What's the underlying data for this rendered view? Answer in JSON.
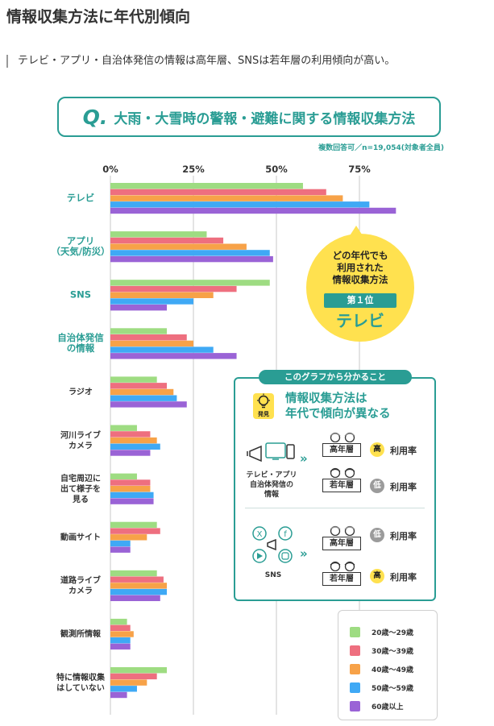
{
  "page": {
    "title": "情報収集方法に年代別傾向",
    "subtitle": "テレビ・アプリ・自治体発信の情報は高年層、SNSは若年層の利用傾向が高い。"
  },
  "question": {
    "mark": "Q.",
    "text": "大雨・大雪時の警報・避難に関する情報収集方法"
  },
  "note": "複数回答可／n=19,054(対象者全員)",
  "callout": {
    "line1": "どの年代でも",
    "line2": "利用された",
    "line3": "情報収集方法",
    "badge": "第１位",
    "answer": "テレビ"
  },
  "finding": {
    "tag": "このグラフから分かること",
    "icon_label": "発見",
    "icon": "lightbulb-icon",
    "heading_line1": "情報収集方法は",
    "heading_line2": "年代で傾向が異なる",
    "group1": {
      "name_line1": "テレビ・アプリ",
      "name_line2": "自治体発信の",
      "name_line3": "情報",
      "icon": "tv-megaphone-icon",
      "arrows": "»",
      "rows": [
        {
          "gen": "高年層",
          "rate_mark": "高",
          "rate": "利用率"
        },
        {
          "gen": "若年層",
          "rate_mark": "低",
          "rate": "利用率"
        }
      ]
    },
    "group2": {
      "name": "SNS",
      "icon": "sns-icons",
      "arrows": "»",
      "rows": [
        {
          "gen": "高年層",
          "rate_mark": "低",
          "rate": "利用率"
        },
        {
          "gen": "若年層",
          "rate_mark": "高",
          "rate": "利用率"
        }
      ]
    }
  },
  "colors": {
    "accent": "#2a9d94",
    "highlight": "#ffe14f",
    "grid": "#c8c8c8"
  },
  "chart_data": {
    "type": "bar",
    "orientation": "horizontal",
    "xlim": [
      0,
      87
    ],
    "x_ticks": [
      "0%",
      "25%",
      "50%",
      "75%"
    ],
    "tick_values": [
      0,
      25,
      50,
      75
    ],
    "grid": true,
    "legend_position": "bottom-right",
    "categories": [
      [
        "テレビ"
      ],
      [
        "アプリ",
        "（天気/防災）"
      ],
      [
        "SNS"
      ],
      [
        "自治体発信",
        "の情報"
      ],
      [
        "ラジオ"
      ],
      [
        "河川ライブ",
        "カメラ"
      ],
      [
        "自宅周辺に",
        "出て様子を",
        "見る"
      ],
      [
        "動画サイト"
      ],
      [
        "道路ライブ",
        "カメラ"
      ],
      [
        "観測所情報"
      ],
      [
        "特に情報収集",
        "はしていない"
      ]
    ],
    "highlight_categories": [
      0,
      1,
      2,
      3
    ],
    "series": [
      {
        "name": "20歳〜29歳",
        "color": "#9edc82",
        "values": [
          58,
          29,
          48,
          17,
          14,
          8,
          8,
          14,
          14,
          5,
          17
        ]
      },
      {
        "name": "30歳〜39歳",
        "color": "#ee6f7f",
        "values": [
          65,
          34,
          38,
          23,
          17,
          12,
          12,
          15,
          16,
          6,
          14
        ]
      },
      {
        "name": "40歳〜49歳",
        "color": "#f7a248",
        "values": [
          70,
          41,
          31,
          25,
          19,
          14,
          12,
          11,
          17,
          7,
          11
        ]
      },
      {
        "name": "50歳〜59歳",
        "color": "#3fa9f5",
        "values": [
          78,
          48,
          25,
          31,
          20,
          15,
          13,
          6,
          17,
          6,
          8
        ]
      },
      {
        "name": "60歳以上",
        "color": "#9a63d6",
        "values": [
          86,
          49,
          17,
          38,
          23,
          12,
          13,
          6,
          15,
          6,
          5
        ]
      }
    ]
  }
}
